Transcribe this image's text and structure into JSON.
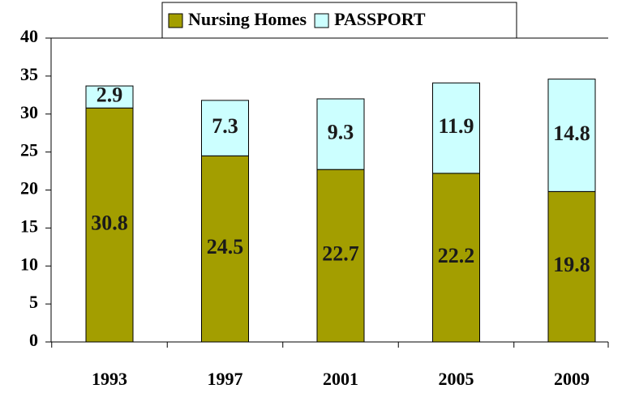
{
  "chart_data": {
    "type": "stacked_bar",
    "categories": [
      "1993",
      "1997",
      "2001",
      "2005",
      "2009"
    ],
    "series": [
      {
        "name": "Nursing Homes",
        "color": "#a39e00",
        "values": [
          30.8,
          24.5,
          22.7,
          22.2,
          19.8
        ]
      },
      {
        "name": "PASSPORT",
        "color": "#ccffff",
        "values": [
          2.9,
          7.3,
          9.3,
          11.9,
          14.8
        ]
      }
    ],
    "ylim": [
      0,
      40
    ],
    "yticks": [
      0,
      5,
      10,
      15,
      20,
      25,
      30,
      35,
      40
    ],
    "grid": false,
    "legend": "top"
  }
}
